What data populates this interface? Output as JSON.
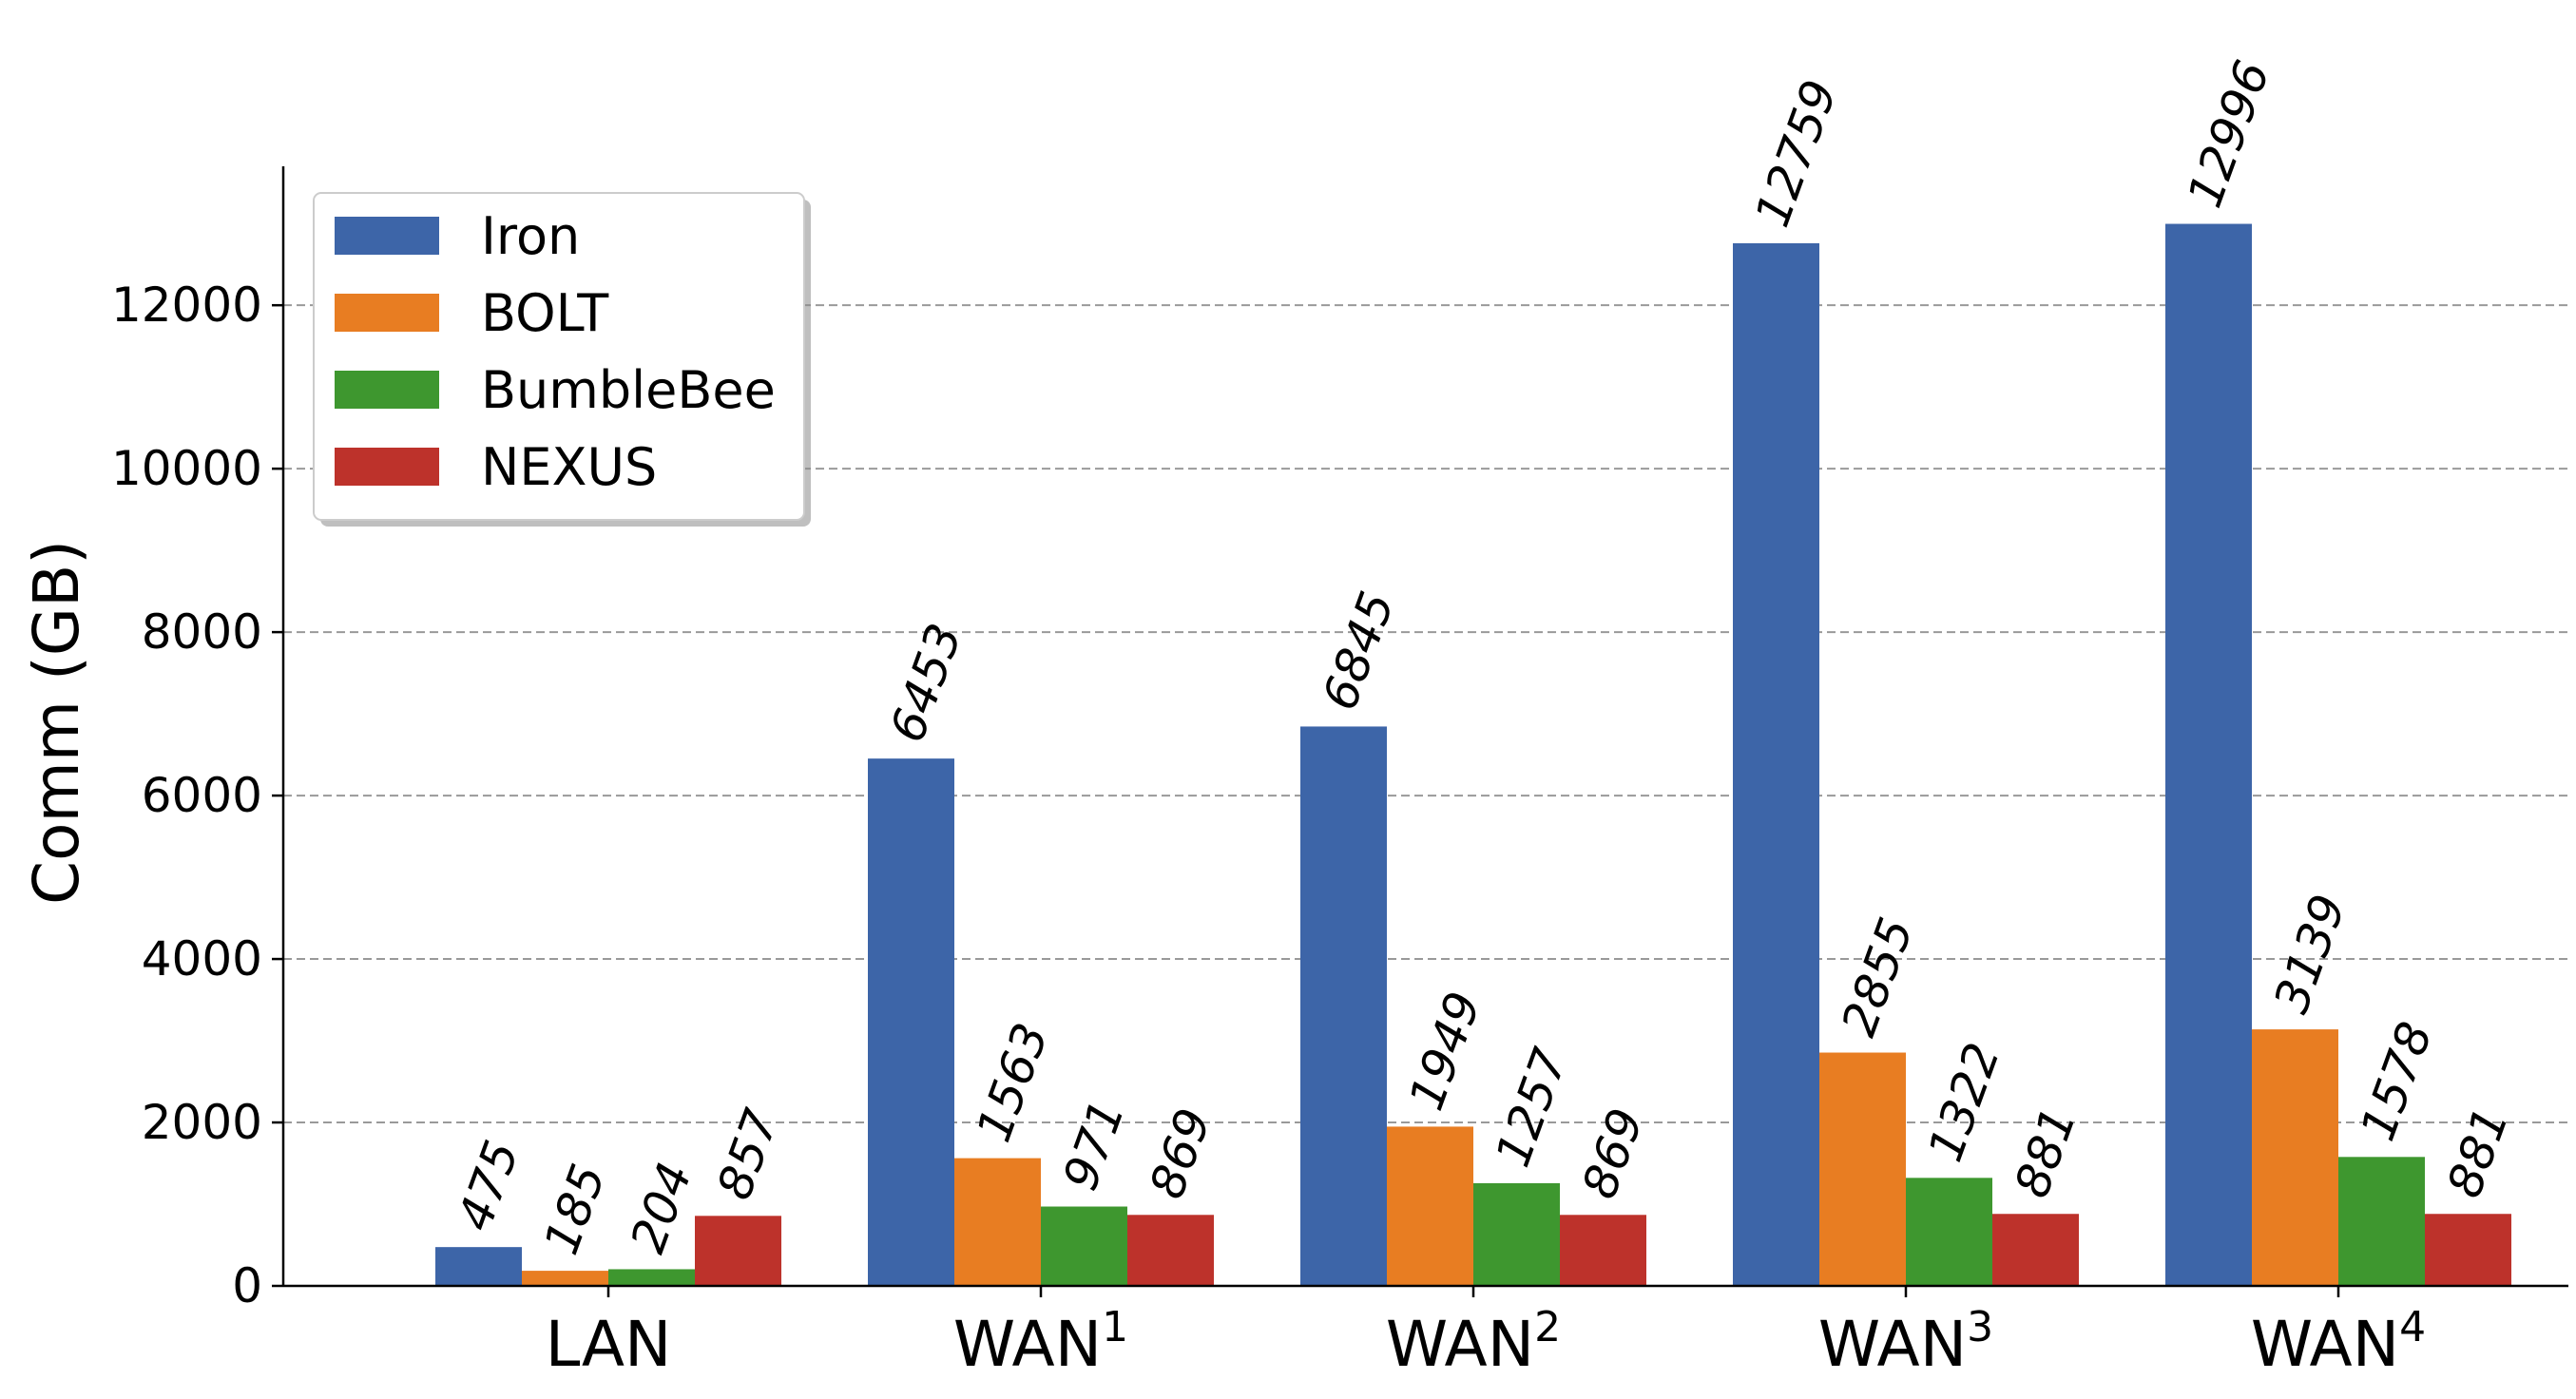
{
  "chart_data": {
    "type": "bar",
    "categories": [
      {
        "base": "LAN",
        "sup": ""
      },
      {
        "base": "WAN",
        "sup": "1"
      },
      {
        "base": "WAN",
        "sup": "2"
      },
      {
        "base": "WAN",
        "sup": "3"
      },
      {
        "base": "WAN",
        "sup": "4"
      }
    ],
    "series": [
      {
        "name": "Iron",
        "color": "#3d65a8",
        "values": [
          475,
          6453,
          6845,
          12759,
          12996
        ]
      },
      {
        "name": "BOLT",
        "color": "#e87d22",
        "values": [
          185,
          1563,
          1949,
          2855,
          3139
        ]
      },
      {
        "name": "BumbleBee",
        "color": "#3e972f",
        "values": [
          204,
          971,
          1257,
          1322,
          1578
        ]
      },
      {
        "name": "NEXUS",
        "color": "#bd322b",
        "values": [
          857,
          869,
          869,
          881,
          881
        ]
      }
    ],
    "title": "",
    "xlabel": "",
    "ylabel": "Comm (GB)",
    "ylim": [
      0,
      13700
    ],
    "yticks": [
      0,
      2000,
      4000,
      6000,
      8000,
      10000,
      12000
    ],
    "grid": "horizontal dashed",
    "legend_position": "top-left",
    "data_labels": "rotated above bars"
  }
}
